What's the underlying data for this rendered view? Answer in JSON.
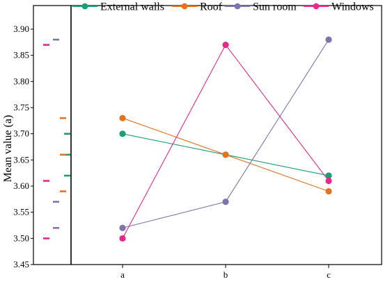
{
  "chart_data": {
    "type": "line",
    "title": "",
    "xlabel": "",
    "ylabel": "Mean value (a)",
    "categories": [
      "a",
      "b",
      "c"
    ],
    "ylim": [
      3.45,
      3.9
    ],
    "yticks": [
      "3.45",
      "3.50",
      "3.55",
      "3.60",
      "3.65",
      "3.70",
      "3.75",
      "3.80",
      "3.85",
      "3.90"
    ],
    "grid": false,
    "legend_position": "top",
    "series": [
      {
        "name": "External walls",
        "color": "#1b9e77",
        "values": [
          3.7,
          3.66,
          3.62
        ]
      },
      {
        "name": "Roof",
        "color": "#e8711c",
        "values": [
          3.73,
          3.66,
          3.59
        ]
      },
      {
        "name": "Sun room",
        "color": "#8073ac",
        "values": [
          3.52,
          3.57,
          3.88
        ]
      },
      {
        "name": "Windows",
        "color": "#e7298a",
        "values": [
          3.5,
          3.87,
          3.61
        ]
      }
    ]
  }
}
